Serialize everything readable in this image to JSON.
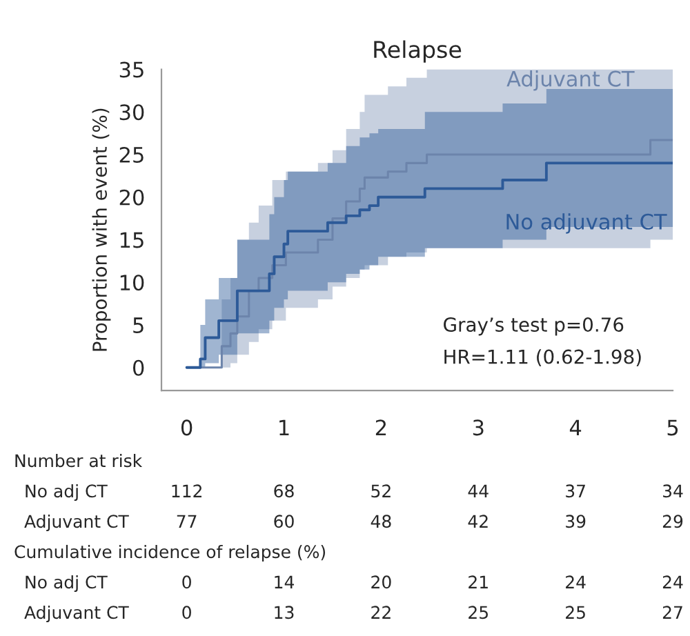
{
  "chart_data": {
    "type": "step",
    "title": "Relapse",
    "ylabel": "Proportion with event (%)",
    "xlim": [
      -0.26,
      5.0
    ],
    "xticks": [
      0,
      1,
      2,
      3,
      4,
      5
    ],
    "ylim": [
      -2.7,
      35
    ],
    "yticks": [
      0,
      5,
      10,
      15,
      20,
      25,
      30,
      35
    ],
    "grid": false,
    "legend": false,
    "series": [
      {
        "name": "Adjuvant CT",
        "color": "#6c84ab",
        "x": [
          0,
          0.31,
          0.36,
          0.45,
          0.52,
          0.64,
          0.74,
          0.88,
          1.02,
          1.35,
          1.5,
          1.64,
          1.78,
          1.83,
          2.07,
          2.26,
          2.47,
          4.77,
          5
        ],
        "values": [
          0,
          0,
          2.5,
          4,
          6,
          9,
          10.5,
          12,
          13.5,
          15,
          17.5,
          19.5,
          21,
          22.3,
          23,
          24,
          25,
          26.7,
          26.7
        ],
        "upper": [
          0,
          0,
          8,
          10.5,
          15,
          17,
          19,
          22,
          23,
          24,
          25.5,
          28,
          30,
          32,
          33,
          34,
          35,
          35,
          35
        ],
        "lower": [
          0,
          0,
          0,
          0.5,
          1.5,
          3,
          4.5,
          5.5,
          7,
          8,
          9.5,
          10.5,
          11.5,
          12,
          13,
          13.5,
          14,
          15,
          15
        ]
      },
      {
        "name": "No adjuvant CT",
        "color": "#2d5a98",
        "x": [
          0,
          0.14,
          0.19,
          0.33,
          0.52,
          0.85,
          0.9,
          1.0,
          1.04,
          1.45,
          1.64,
          1.78,
          1.88,
          1.97,
          2.45,
          3.25,
          3.7,
          5
        ],
        "values": [
          0,
          1,
          3.5,
          5.5,
          9,
          11,
          13,
          14.5,
          16,
          17,
          17.8,
          18.5,
          19,
          20,
          21,
          22,
          24,
          24
        ],
        "upper": [
          0,
          5,
          8,
          10.5,
          15,
          18,
          20,
          22,
          23,
          24,
          26,
          27,
          27.5,
          28,
          30,
          31,
          32.7,
          32.7
        ],
        "lower": [
          0,
          0,
          0.5,
          1.5,
          4,
          5.5,
          7,
          8,
          9,
          10,
          11,
          11.5,
          12,
          13,
          14,
          15,
          16.5,
          16.5
        ]
      }
    ],
    "annotations": [
      "Gray’s test p=0.76",
      "HR=1.11 (0.62-1.98)",
      "Number at risk",
      "No adj CT 112 68 52 44 37 34",
      "Adjuvant CT 77 60 48 42 39 29",
      "Cumulative incidence of relapse (%)",
      "No adj CT 0 14 20 21 24 24",
      "Adjuvant CT 0 13 22 25 25 27"
    ]
  }
}
